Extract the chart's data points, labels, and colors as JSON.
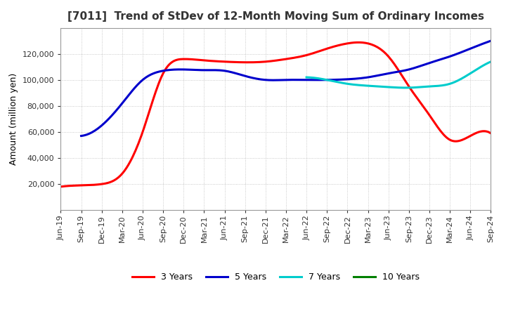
{
  "title": "[7011]  Trend of StDev of 12-Month Moving Sum of Ordinary Incomes",
  "ylabel": "Amount (million yen)",
  "ylim": [
    0,
    140000
  ],
  "yticks": [
    20000,
    40000,
    60000,
    80000,
    100000,
    120000
  ],
  "background_color": "#ffffff",
  "grid_color": "#bbbbbb",
  "legend_labels": [
    "3 Years",
    "5 Years",
    "7 Years",
    "10 Years"
  ],
  "legend_colors": [
    "#ff0000",
    "#0000cc",
    "#00cccc",
    "#008000"
  ],
  "x_labels": [
    "Jun-19",
    "Sep-19",
    "Dec-19",
    "Mar-20",
    "Jun-20",
    "Sep-20",
    "Dec-20",
    "Mar-21",
    "Jun-21",
    "Sep-21",
    "Dec-21",
    "Mar-22",
    "Jun-22",
    "Sep-22",
    "Dec-22",
    "Mar-23",
    "Jun-23",
    "Sep-23",
    "Dec-23",
    "Mar-24",
    "Jun-24",
    "Sep-24"
  ],
  "series_3yr": [
    18000,
    19000,
    20000,
    28000,
    60000,
    105000,
    116000,
    115000,
    114000,
    113500,
    114000,
    116000,
    119000,
    124000,
    128000,
    128000,
    118000,
    95000,
    73000,
    54000,
    57000,
    59000
  ],
  "series_5yr": [
    null,
    57000,
    65000,
    82000,
    100000,
    107000,
    108000,
    107500,
    107000,
    103000,
    100000,
    100000,
    100000,
    100000,
    100500,
    102000,
    105000,
    108000,
    113000,
    118000,
    124000,
    130000
  ],
  "series_7yr": [
    null,
    null,
    null,
    null,
    null,
    null,
    null,
    null,
    null,
    null,
    null,
    null,
    102000,
    100000,
    97000,
    95500,
    94500,
    94000,
    95000,
    97000,
    105000,
    114000
  ],
  "series_10yr": [
    null,
    null,
    null,
    null,
    null,
    null,
    null,
    null,
    null,
    null,
    null,
    null,
    null,
    null,
    null,
    null,
    null,
    null,
    null,
    null,
    null,
    null
  ],
  "figsize": [
    7.2,
    4.4
  ],
  "dpi": 100
}
